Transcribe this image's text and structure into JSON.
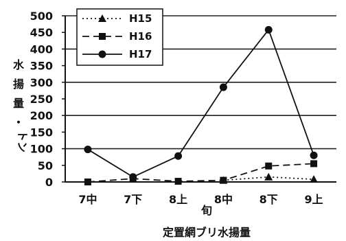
{
  "chart_data": {
    "type": "line",
    "title": "定置網ブリ水揚量",
    "xlabel": "旬",
    "ylabel": [
      "水",
      "揚",
      "量",
      "・",
      "トン"
    ],
    "categories": [
      "7中",
      "7下",
      "8上",
      "8中",
      "8下",
      "9上"
    ],
    "ylim": [
      0,
      500
    ],
    "yticks": [
      "0",
      "50",
      "100",
      "150",
      "200",
      "250",
      "300",
      "350",
      "400",
      "450",
      "500"
    ],
    "grid": "horizontal at 100, 200, 300, 400, 500",
    "legend_position": "top-left",
    "series": [
      {
        "name": "H15",
        "marker": "triangle",
        "line": "dotted",
        "values": [
          null,
          null,
          null,
          5,
          15,
          8
        ]
      },
      {
        "name": "H16",
        "marker": "square",
        "line": "dashed",
        "values": [
          0,
          10,
          2,
          5,
          48,
          55
        ]
      },
      {
        "name": "H17",
        "marker": "circle",
        "line": "solid",
        "values": [
          98,
          15,
          78,
          285,
          458,
          80
        ]
      }
    ]
  }
}
